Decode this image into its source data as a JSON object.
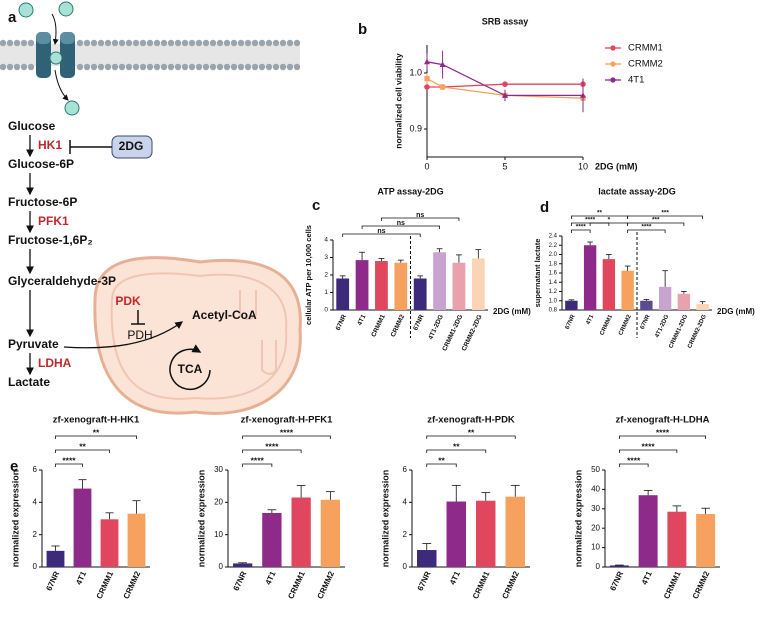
{
  "diagram": {
    "panel": "a",
    "steps": [
      "Glucose",
      "Glucose-6P",
      "Fructose-6P",
      "Fructose-1,6P₂",
      "Glyceraldehyde-3P",
      "Pyruvate",
      "Lactate"
    ],
    "enzymes": [
      "HK1",
      "PFK1",
      "LDHA"
    ],
    "inhibitor": "2DG",
    "mito": {
      "pdk": "PDK",
      "pdh": "PDH",
      "acetyl": "Acetyl-CoA",
      "tca": "TCA"
    }
  },
  "chart_data": [
    {
      "type": "line",
      "panel": "b",
      "title": "SRB assay",
      "xlabel": "2DG (mM)",
      "ylabel": "normalized cell viability",
      "x": [
        0,
        1,
        5,
        10
      ],
      "xlim": [
        0,
        10
      ],
      "xticks": [
        0,
        5,
        10
      ],
      "ylim": [
        0.85,
        1.05
      ],
      "yticks": [
        0.9,
        {
          "value": 1,
          "label": "1.0"
        }
      ],
      "legend": "right",
      "series": [
        {
          "name": "CRMM1",
          "color": "#e0475f",
          "values": [
            0.975,
            0.975,
            0.98,
            0.98
          ],
          "errors": [
            0.005,
            0.005,
            0.005,
            0.01
          ]
        },
        {
          "name": "CRMM2",
          "color": "#f6a15e",
          "values": [
            0.99,
            0.975,
            0.96,
            0.955
          ],
          "errors": [
            0.01,
            0.005,
            0.005,
            0.015
          ]
        },
        {
          "name": "4T1",
          "color": "#8e2a8a",
          "values": [
            1.02,
            1.015,
            0.96,
            0.96
          ],
          "errors": [
            0.015,
            0.025,
            0.01,
            0.03
          ]
        }
      ]
    },
    {
      "type": "bar",
      "panel": "c",
      "title": "ATP assay-2DG",
      "xlabel": "2DG (mM)",
      "ylabel": "cellular ATP per 10,000 cells",
      "categories": [
        "67NR",
        "4T1",
        "CRMM1",
        "CRMM2",
        "67NR",
        "4T1-2DG",
        "CRMM1-2DG",
        "CRMM2-2DG"
      ],
      "values": [
        1.8,
        2.85,
        2.8,
        2.7,
        1.8,
        3.3,
        2.7,
        2.95
      ],
      "errors": [
        0.15,
        0.45,
        0.15,
        0.15,
        0.15,
        0.2,
        0.45,
        0.5
      ],
      "colors": [
        "#3d2a7a",
        "#8e2a8a",
        "#e0475f",
        "#f6a15e",
        "#3d2a7a",
        "#c9a3d0",
        "#e9a2ad",
        "#fbd3b5"
      ],
      "ylim": [
        0,
        4
      ],
      "yticks": [
        0,
        1,
        2,
        3,
        4
      ],
      "annotations": [
        "ns",
        "ns",
        "ns"
      ]
    },
    {
      "type": "bar",
      "panel": "d",
      "title": "lactate assay-2DG",
      "xlabel": "2DG (mM)",
      "ylabel": "supernatant lactate",
      "categories": [
        "67NR",
        "4T1",
        "CRMM1",
        "CRMM2",
        "67NR",
        "4T1-2DG",
        "CRMM1-2DG",
        "CRMM2-2DG"
      ],
      "values": [
        1.0,
        2.2,
        1.9,
        1.65,
        1.0,
        1.3,
        1.15,
        0.93
      ],
      "errors": [
        0.02,
        0.07,
        0.1,
        0.1,
        0.03,
        0.35,
        0.05,
        0.05
      ],
      "colors": [
        "#3d2a7a",
        "#8e2a8a",
        "#e0475f",
        "#f6a15e",
        "#5a4a90",
        "#c9a3d0",
        "#e9a2ad",
        "#fbd3b5"
      ],
      "ylim": [
        0.8,
        2.4
      ],
      "yticks": [
        0.8,
        {
          "value": 1,
          "label": "1.0"
        },
        1.2,
        1.4,
        1.6,
        1.8,
        {
          "value": 2,
          "label": "2.0"
        },
        2.2,
        2.4
      ],
      "annotations": [
        "**",
        "***",
        "****",
        "*",
        "***",
        "****",
        "****"
      ]
    },
    {
      "type": "bar",
      "panel": "e",
      "title": "zf-xenograft-H-HK1",
      "ylabel": "normalized expression",
      "categories": [
        "67NR",
        "4T1",
        "CRMM1",
        "CRMM2"
      ],
      "values": [
        1.0,
        4.85,
        2.95,
        3.3
      ],
      "errors": [
        0.3,
        0.55,
        0.4,
        0.8
      ],
      "colors": [
        "#3d2a7a",
        "#8e2a8a",
        "#e0475f",
        "#f6a15e"
      ],
      "ylim": [
        0,
        6
      ],
      "yticks": [
        0,
        2,
        4,
        6
      ],
      "annotations": [
        "**",
        "**",
        "****"
      ]
    },
    {
      "type": "bar",
      "title": "zf-xenograft-H-PFK1",
      "ylabel": "normalized expression",
      "categories": [
        "67NR",
        "4T1",
        "CRMM1",
        "CRMM2"
      ],
      "values": [
        1.1,
        16.7,
        21.5,
        20.8
      ],
      "errors": [
        0.2,
        1.0,
        3.7,
        2.5
      ],
      "colors": [
        "#3d2a7a",
        "#8e2a8a",
        "#e0475f",
        "#f6a15e"
      ],
      "ylim": [
        0,
        30
      ],
      "yticks": [
        0,
        10,
        20,
        30
      ],
      "annotations": [
        "****",
        "****",
        "****"
      ]
    },
    {
      "type": "bar",
      "title": "zf-xenograft-H-PDK",
      "ylabel": "normalized expression",
      "categories": [
        "67NR",
        "4T1",
        "CRMM1",
        "CRMM2"
      ],
      "values": [
        1.05,
        4.05,
        4.1,
        4.35
      ],
      "errors": [
        0.4,
        1.0,
        0.5,
        0.7
      ],
      "colors": [
        "#3d2a7a",
        "#8e2a8a",
        "#e0475f",
        "#f6a15e"
      ],
      "ylim": [
        0,
        6
      ],
      "yticks": [
        0,
        2,
        4,
        6
      ],
      "annotations": [
        "**",
        "**",
        "**"
      ]
    },
    {
      "type": "bar",
      "title": "zf-xenograft-H-LDHA",
      "ylabel": "normalized expression",
      "categories": [
        "67NR",
        "4T1",
        "CRMM1",
        "CRMM2"
      ],
      "values": [
        0.8,
        37,
        28.5,
        27.3
      ],
      "errors": [
        0.2,
        2.5,
        3,
        3
      ],
      "colors": [
        "#3d2a7a",
        "#8e2a8a",
        "#e0475f",
        "#f6a15e"
      ],
      "ylim": [
        0,
        50
      ],
      "yticks": [
        0,
        10,
        20,
        30,
        40,
        50
      ],
      "annotations": [
        "****",
        "****",
        "****"
      ]
    }
  ]
}
